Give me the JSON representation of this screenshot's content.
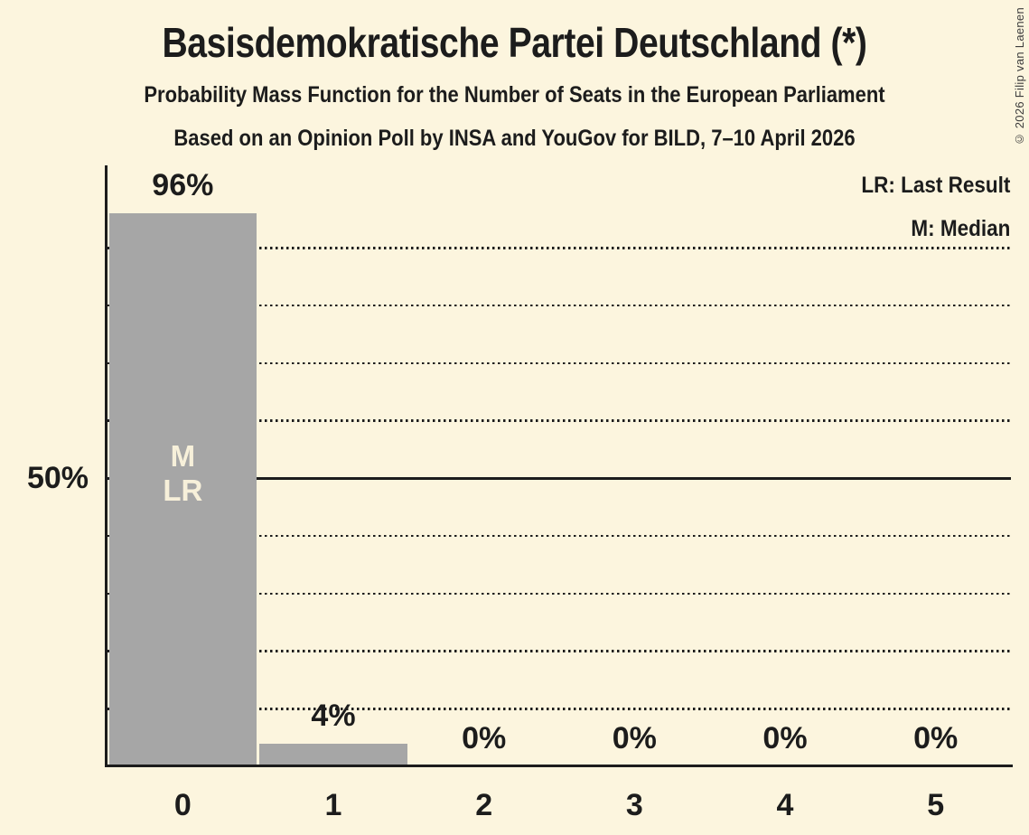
{
  "chart_data": {
    "type": "bar",
    "title": "Basisdemokratische Partei Deutschland (*)",
    "subtitle": "Probability Mass Function for the Number of Seats in the European Parliament",
    "source_line": "Based on an Opinion Poll by INSA and YouGov for BILD, 7–10 April 2026",
    "copyright": "© 2026 Filip van Laenen",
    "legend": [
      {
        "abbr": "LR",
        "label": "LR: Last Result"
      },
      {
        "abbr": "M",
        "label": "M: Median"
      }
    ],
    "legend_position": "top-right",
    "categories": [
      "0",
      "1",
      "2",
      "3",
      "4",
      "5"
    ],
    "values": [
      96,
      4,
      0,
      0,
      0,
      0
    ],
    "value_labels": [
      "96%",
      "4%",
      "0%",
      "0%",
      "0%",
      "0%"
    ],
    "bar_markers": [
      [
        "M",
        "LR"
      ],
      [],
      [],
      [],
      [],
      []
    ],
    "y_axis_label": "50%",
    "ylim": [
      0,
      104
    ],
    "gridlines": {
      "dotted_pct": [
        10,
        20,
        30,
        40,
        60,
        70,
        80,
        90
      ],
      "solid_pct": 50,
      "style": "horizontal dotted"
    },
    "colors": {
      "background": "#fcf5de",
      "bar": "#a6a6a6",
      "text": "#1c1c1c",
      "bar_label_text": "#f7f0da",
      "copyright_text": "#3c3c3c"
    }
  }
}
